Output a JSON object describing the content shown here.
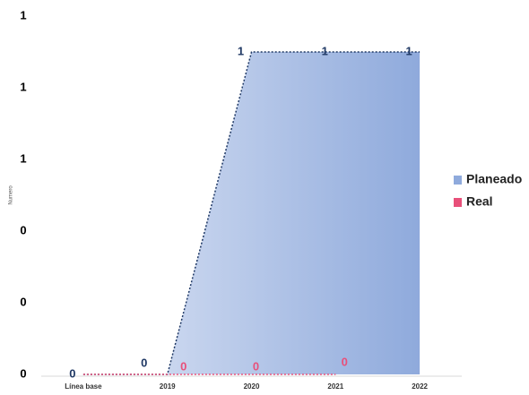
{
  "chart_data": {
    "type": "area",
    "y_label": "Numero",
    "categories": [
      "Línea base",
      "2019",
      "2020",
      "2021",
      "2022"
    ],
    "series": [
      {
        "name": "Planeado",
        "color": "#8faadc",
        "values": [
          0,
          0,
          0.9,
          0.9,
          0.9
        ],
        "value_labels": [
          "0",
          "0",
          "1",
          "1",
          "1"
        ]
      },
      {
        "name": "Real",
        "color": "#e8507a",
        "values": [
          0,
          0,
          0,
          0,
          null
        ],
        "value_labels": [
          null,
          "0",
          "0",
          "0",
          null
        ]
      }
    ],
    "ylim": [
      0,
      1
    ],
    "yticks": [
      0,
      {
        "value": 0.2,
        "label": "0"
      },
      {
        "value": 0.4,
        "label": "0"
      },
      {
        "value": 0.6,
        "label": "1"
      },
      {
        "value": 0.8,
        "label": "1"
      },
      {
        "value": 1,
        "label": "1"
      }
    ],
    "legend": "right"
  }
}
